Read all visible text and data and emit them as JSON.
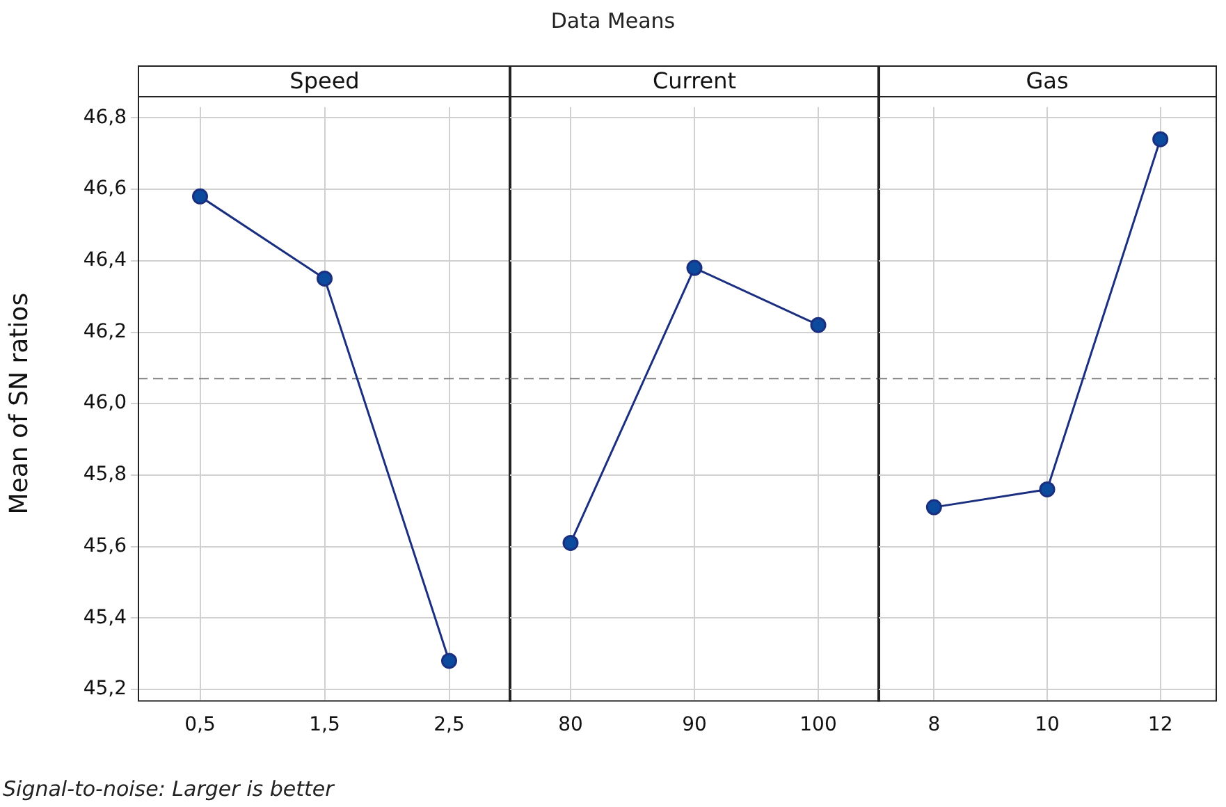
{
  "chart_data": [
    {
      "type": "line",
      "title": "Speed",
      "ylabel": "Mean of SN ratios",
      "annotations": [
        "Data Means",
        "Signal-to-noise: Larger is better"
      ],
      "categories": [
        "0,5",
        "1,5",
        "2,5"
      ],
      "series": [
        {
          "color": "#1b2f80",
          "values": [
            46.58,
            46.35,
            45.28
          ]
        }
      ],
      "ylim": [
        45.17,
        46.83
      ],
      "yticks": [
        {
          "value": 45.2,
          "label": "45,2"
        },
        {
          "value": 45.4,
          "label": "45,4"
        },
        {
          "value": 45.6,
          "label": "45,6"
        },
        {
          "value": 45.8,
          "label": "45,8"
        },
        {
          "value": 46.0,
          "label": "46,0"
        },
        {
          "value": 46.2,
          "label": "46,2"
        },
        {
          "value": 46.4,
          "label": "46,4"
        },
        {
          "value": 46.6,
          "label": "46,6"
        },
        {
          "value": 46.8,
          "label": "46,8"
        }
      ],
      "ref_lines": [
        {
          "axis": "y",
          "value": 46.07,
          "color": "#808080",
          "line_style": "dashed"
        }
      ],
      "grid": true,
      "marker": "circle",
      "line_style": "solid"
    },
    {
      "type": "line",
      "title": "Current",
      "categories": [
        "80",
        "90",
        "100"
      ],
      "series": [
        {
          "color": "#1b2f80",
          "values": [
            45.61,
            46.38,
            46.22
          ]
        }
      ],
      "ylim": [
        45.17,
        46.83
      ],
      "yticks": [
        {
          "value": 45.2,
          "label": null
        },
        {
          "value": 45.4,
          "label": null
        },
        {
          "value": 45.6,
          "label": null
        },
        {
          "value": 45.8,
          "label": null
        },
        {
          "value": 46.0,
          "label": null
        },
        {
          "value": 46.2,
          "label": null
        },
        {
          "value": 46.4,
          "label": null
        },
        {
          "value": 46.6,
          "label": null
        },
        {
          "value": 46.8,
          "label": null
        }
      ],
      "ref_lines": [
        {
          "axis": "y",
          "value": 46.07,
          "color": "#808080",
          "line_style": "dashed"
        }
      ],
      "grid": true,
      "marker": "circle",
      "line_style": "solid",
      "tick_labels": "x"
    },
    {
      "type": "line",
      "title": "Gas",
      "categories": [
        "8",
        "10",
        "12"
      ],
      "series": [
        {
          "color": "#1b2f80",
          "values": [
            45.71,
            45.76,
            46.74
          ]
        }
      ],
      "ylim": [
        45.17,
        46.83
      ],
      "yticks": [
        {
          "value": 45.2,
          "label": null
        },
        {
          "value": 45.4,
          "label": null
        },
        {
          "value": 45.6,
          "label": null
        },
        {
          "value": 45.8,
          "label": null
        },
        {
          "value": 46.0,
          "label": null
        },
        {
          "value": 46.2,
          "label": null
        },
        {
          "value": 46.4,
          "label": null
        },
        {
          "value": 46.6,
          "label": null
        },
        {
          "value": 46.8,
          "label": null
        }
      ],
      "ref_lines": [
        {
          "axis": "y",
          "value": 46.07,
          "color": "#808080",
          "line_style": "dashed"
        }
      ],
      "grid": true,
      "marker": "circle",
      "line_style": "solid",
      "tick_labels": "x"
    }
  ]
}
